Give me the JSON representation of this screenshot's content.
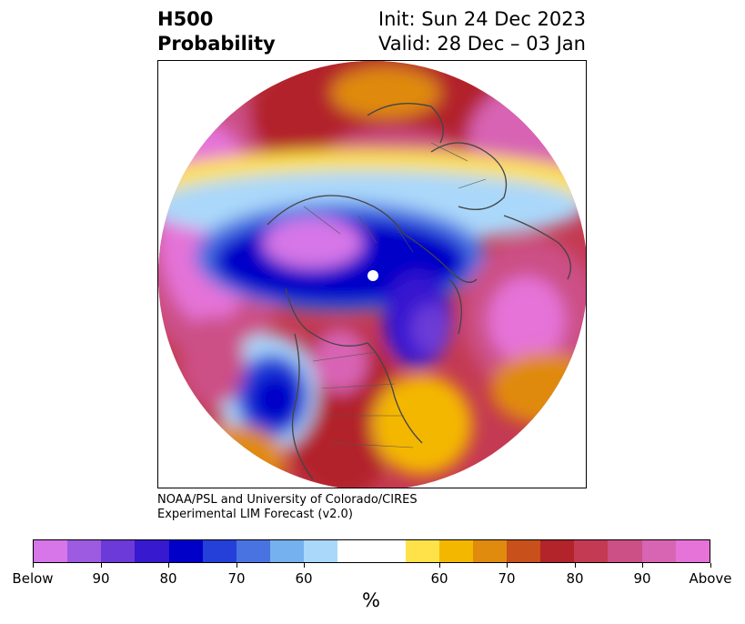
{
  "header": {
    "title_line1": "H500",
    "title_line2": "Probability",
    "init": "Init: Sun 24 Dec 2023",
    "valid": "Valid: 28 Dec – 03 Jan"
  },
  "credit": {
    "line1": "NOAA/PSL and University of Colorado/CIRES",
    "line2": "Experimental LIM Forecast (v2.0)"
  },
  "colorbar": {
    "unit": "%",
    "colors": [
      "#d676e8",
      "#9c5be0",
      "#6c3ad8",
      "#3719d0",
      "#0000c8",
      "#2440d8",
      "#4a73e2",
      "#75b1ee",
      "#aad8fa",
      "#ffffff",
      "#ffe24a",
      "#f4b700",
      "#e08a0e",
      "#c8501a",
      "#b2232a",
      "#c43a52",
      "#cc4f86",
      "#d864b4",
      "#e573d8"
    ],
    "labels": [
      "Below",
      "90",
      "80",
      "70",
      "60",
      "60",
      "70",
      "80",
      "90",
      "Above"
    ]
  },
  "map": {
    "type": "polar stereographic probability map",
    "palette": {
      "magenta": "#e573d8",
      "rose": "#cc4f86",
      "crimson": "#b2232a",
      "orange": "#e08a0e",
      "yellow": "#f4b700",
      "lightyellow": "#ffe24a",
      "lightblue": "#aad8fa",
      "blue": "#4a73e2",
      "royal": "#2440d8",
      "navy": "#0000c8",
      "indigo": "#3719d0",
      "violet": "#6c3ad8",
      "lilac": "#d676e8"
    }
  }
}
